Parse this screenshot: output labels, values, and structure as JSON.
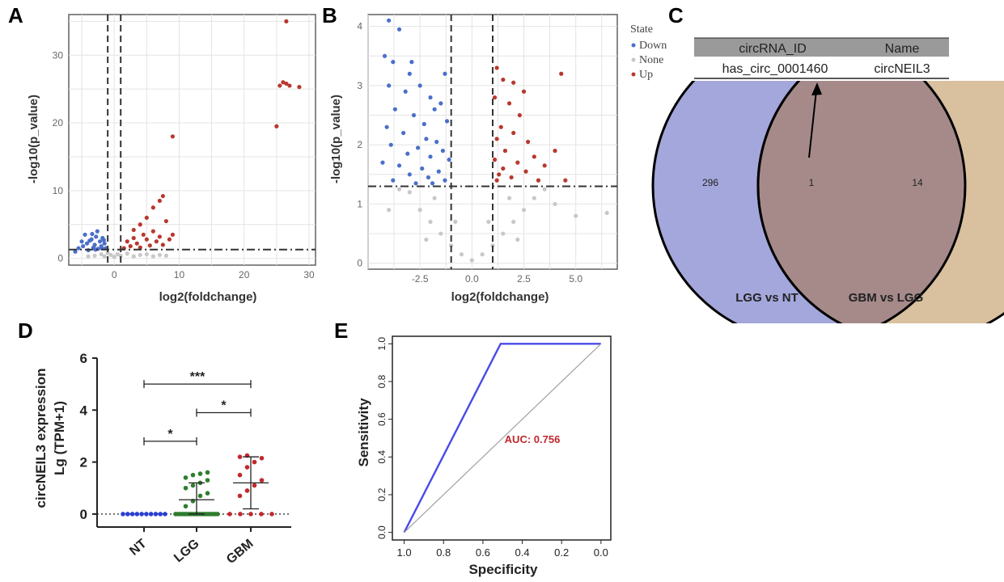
{
  "panels": {
    "A": {
      "letter": "A",
      "chart_data": {
        "type": "scatter",
        "xlabel": "log2(foldchange)",
        "ylabel": "-log10(p_value)",
        "xlim": [
          -7,
          31
        ],
        "ylim": [
          -1,
          36
        ],
        "xticks": [
          0,
          10,
          20,
          30
        ],
        "yticks": [
          0,
          10,
          20,
          30
        ],
        "grid": true,
        "vlines": [
          -1,
          1
        ],
        "hline": 1.3,
        "series": [
          {
            "name": "Down",
            "color": "#4b6fc9",
            "points": [
              [
                -6,
                1
              ],
              [
                -5.5,
                1.5
              ],
              [
                -5,
                2.5
              ],
              [
                -4.8,
                1.8
              ],
              [
                -4.5,
                3.5
              ],
              [
                -4.2,
                2.2
              ],
              [
                -4,
                1.2
              ],
              [
                -3.5,
                2.8
              ],
              [
                -3.2,
                1.6
              ],
              [
                -3,
                2
              ],
              [
                -2.8,
                3.2
              ],
              [
                -2.5,
                1.4
              ],
              [
                -2.2,
                2.5
              ],
              [
                -2,
                1.8
              ],
              [
                -1.8,
                3
              ],
              [
                -1.5,
                2.2
              ],
              [
                -1.3,
                1.5
              ],
              [
                -2.6,
                4
              ],
              [
                -3.8,
                2.6
              ],
              [
                -1.6,
                2.7
              ],
              [
                -2.9,
                1.3
              ],
              [
                -1.9,
                1.5
              ],
              [
                -3.4,
                3.6
              ]
            ]
          },
          {
            "name": "None",
            "color": "#c8c8c8",
            "points": [
              [
                -3,
                0.4
              ],
              [
                -2,
                0.6
              ],
              [
                -1.5,
                0.3
              ],
              [
                -1,
                0.8
              ],
              [
                -0.5,
                0.5
              ],
              [
                0,
                0.2
              ],
              [
                0.5,
                0.6
              ],
              [
                1,
                0.4
              ],
              [
                2,
                0.7
              ],
              [
                3,
                0.3
              ],
              [
                4,
                0.5
              ],
              [
                5,
                0.6
              ],
              [
                6,
                0.3
              ],
              [
                8,
                0.4
              ],
              [
                -4,
                0.3
              ],
              [
                7,
                0.5
              ]
            ]
          },
          {
            "name": "Up",
            "color": "#b8382e",
            "points": [
              [
                1.5,
                1.5
              ],
              [
                2,
                2.5
              ],
              [
                2.5,
                1.8
              ],
              [
                3,
                3
              ],
              [
                3.5,
                2.2
              ],
              [
                4,
                1.6
              ],
              [
                4.5,
                3.5
              ],
              [
                5,
                2.8
              ],
              [
                5.5,
                1.9
              ],
              [
                6,
                4
              ],
              [
                6.5,
                2.5
              ],
              [
                7,
                3.2
              ],
              [
                7.5,
                2
              ],
              [
                8,
                5.5
              ],
              [
                8.5,
                2.8
              ],
              [
                9,
                3.5
              ],
              [
                4,
                5
              ],
              [
                5,
                6
              ],
              [
                6,
                7.5
              ],
              [
                7,
                8.5
              ],
              [
                7.5,
                9.2
              ],
              [
                3,
                4.2
              ],
              [
                9,
                18
              ],
              [
                25,
                19.5
              ],
              [
                25.5,
                25.5
              ],
              [
                26.5,
                25.8
              ],
              [
                27,
                25.5
              ],
              [
                26.5,
                35
              ],
              [
                28.5,
                25.3
              ],
              [
                26,
                26
              ]
            ]
          }
        ]
      }
    },
    "B": {
      "letter": "B",
      "chart_data": {
        "type": "scatter",
        "xlabel": "log2(foldchange)",
        "ylabel": "-log10(p_value)",
        "xlim": [
          -5,
          7
        ],
        "ylim": [
          -0.1,
          4.2
        ],
        "xticks": [
          -2.5,
          0.0,
          2.5,
          5.0
        ],
        "xtick_labels": [
          "-2.5",
          "0.0",
          "2.5",
          "5.0"
        ],
        "yticks": [
          0,
          1,
          2,
          3,
          4
        ],
        "grid": true,
        "vlines": [
          -1,
          1
        ],
        "hline": 1.3,
        "series": [
          {
            "name": "Down",
            "color": "#4b6fc9",
            "points": [
              [
                -4,
                4.1
              ],
              [
                -3.5,
                3.95
              ],
              [
                -4.2,
                3.5
              ],
              [
                -3.8,
                3.4
              ],
              [
                -3,
                3.2
              ],
              [
                -2.5,
                3
              ],
              [
                -4,
                3
              ],
              [
                -3.2,
                2.9
              ],
              [
                -2,
                2.8
              ],
              [
                -1.5,
                2.7
              ],
              [
                -3.7,
                2.6
              ],
              [
                -2.8,
                2.5
              ],
              [
                -1.2,
                2.4
              ],
              [
                -4.1,
                2.3
              ],
              [
                -3.3,
                2.2
              ],
              [
                -2.2,
                2.1
              ],
              [
                -1.7,
                2.05
              ],
              [
                -3.9,
                2
              ],
              [
                -2.6,
                1.95
              ],
              [
                -1.4,
                1.9
              ],
              [
                -3.1,
                1.85
              ],
              [
                -2,
                1.8
              ],
              [
                -1.1,
                1.75
              ],
              [
                -4.3,
                1.7
              ],
              [
                -3.5,
                1.65
              ],
              [
                -2.4,
                1.6
              ],
              [
                -1.6,
                1.55
              ],
              [
                -3,
                1.5
              ],
              [
                -2.1,
                1.45
              ],
              [
                -1.3,
                1.4
              ],
              [
                -3.8,
                1.4
              ],
              [
                -2.7,
                1.35
              ],
              [
                -1.9,
                1.35
              ],
              [
                -2.3,
                2.35
              ],
              [
                -1.8,
                2.6
              ],
              [
                -1.3,
                3.2
              ],
              [
                -2.9,
                3.4
              ]
            ]
          },
          {
            "name": "None",
            "color": "#c8c8c8",
            "points": [
              [
                -3,
                1.2
              ],
              [
                -2.5,
                0.9
              ],
              [
                -2,
                0.7
              ],
              [
                -1.5,
                0.5
              ],
              [
                -1,
                0.3
              ],
              [
                -0.5,
                0.15
              ],
              [
                0,
                0.05
              ],
              [
                0.5,
                0.15
              ],
              [
                1,
                0.3
              ],
              [
                1.5,
                0.5
              ],
              [
                2,
                0.7
              ],
              [
                2.5,
                0.9
              ],
              [
                3,
                1.1
              ],
              [
                3.5,
                1.25
              ],
              [
                -3.5,
                1.25
              ],
              [
                -1.8,
                1.1
              ],
              [
                1.8,
                1.1
              ],
              [
                -0.8,
                0.7
              ],
              [
                0.8,
                0.7
              ],
              [
                4,
                1
              ],
              [
                5,
                0.8
              ],
              [
                6.5,
                0.85
              ],
              [
                -4,
                0.9
              ],
              [
                2.2,
                0.4
              ],
              [
                -2.2,
                0.4
              ]
            ]
          },
          {
            "name": "Up",
            "color": "#b8382e",
            "points": [
              [
                1.2,
                3.3
              ],
              [
                1.5,
                3.1
              ],
              [
                2,
                3.05
              ],
              [
                2.5,
                2.9
              ],
              [
                1.1,
                2.8
              ],
              [
                1.8,
                2.7
              ],
              [
                2.3,
                2.5
              ],
              [
                1.4,
                2.3
              ],
              [
                2,
                2.2
              ],
              [
                1.2,
                2.1
              ],
              [
                2.7,
                2.05
              ],
              [
                1.6,
                1.9
              ],
              [
                3,
                1.8
              ],
              [
                1.1,
                1.75
              ],
              [
                2.2,
                1.7
              ],
              [
                1.5,
                1.6
              ],
              [
                3.5,
                1.65
              ],
              [
                1.3,
                1.5
              ],
              [
                2.6,
                1.55
              ],
              [
                1.9,
                1.45
              ],
              [
                1.2,
                1.4
              ],
              [
                3.2,
                1.4
              ],
              [
                4.3,
                3.2
              ],
              [
                4,
                1.9
              ],
              [
                4.5,
                1.4
              ]
            ]
          }
        ]
      },
      "legend": {
        "title": "State",
        "items": [
          {
            "label": "Down",
            "color": "#4b6fc9"
          },
          {
            "label": "None",
            "color": "#c8c8c8"
          },
          {
            "label": "Up",
            "color": "#b8382e"
          }
        ]
      }
    },
    "C": {
      "letter": "C",
      "table": {
        "headers": [
          "circRNA_ID",
          "Name"
        ],
        "rows": [
          [
            "has_circ_0001460",
            "circNEIL3"
          ]
        ]
      },
      "venn": {
        "left_count": "296",
        "overlap_count": "1",
        "right_count": "14",
        "left_label": "LGG vs NT",
        "right_label": "GBM vs LGG",
        "left_color": "#a4a7db",
        "right_color": "#d9c09f",
        "overlap_color": "#a68a8a"
      }
    },
    "D": {
      "letter": "D",
      "ylabel_line1": "circNEIL3 expression",
      "ylabel_line2": "Lg (TPM+1)",
      "chart_data": {
        "type": "scatter",
        "categories": [
          "NT",
          "LGG",
          "GBM"
        ],
        "ylim": [
          -0.5,
          6
        ],
        "yticks": [
          0,
          2,
          4,
          6
        ],
        "series": [
          {
            "name": "NT",
            "color": "#2b3fcf",
            "mean": 0,
            "sd": 0,
            "values": [
              0,
              0,
              0,
              0,
              0,
              0,
              0,
              0,
              0,
              0
            ]
          },
          {
            "name": "LGG",
            "color": "#2f7d2f",
            "mean": 0.55,
            "sd": 0.65,
            "values": [
              0,
              0,
              0,
              0,
              0,
              0,
              0,
              0,
              0,
              0,
              0,
              0,
              0,
              0,
              0,
              0,
              0,
              0,
              0,
              0,
              0.3,
              0.5,
              0.7,
              0.8,
              1.0,
              1.1,
              1.2,
              1.3,
              1.4,
              1.5,
              1.55,
              1.6
            ]
          },
          {
            "name": "GBM",
            "color": "#c0282d",
            "mean": 1.2,
            "sd": 1.0,
            "values": [
              0,
              0,
              0,
              0,
              0,
              0.7,
              0.9,
              1.1,
              1.3,
              1.5,
              1.8,
              2.0,
              2.15,
              2.2,
              2.25
            ]
          }
        ],
        "significance": [
          {
            "from": "NT",
            "to": "GBM",
            "label": "***",
            "y": 5.0
          },
          {
            "from": "LGG",
            "to": "GBM",
            "label": "*",
            "y": 3.9
          },
          {
            "from": "NT",
            "to": "LGG",
            "label": "*",
            "y": 2.8
          }
        ]
      }
    },
    "E": {
      "letter": "E",
      "chart_data": {
        "type": "line",
        "xlabel": "Specificity",
        "ylabel": "Sensitivity",
        "xlim": [
          1.0,
          0.0
        ],
        "ylim": [
          0.0,
          1.0
        ],
        "xticks": [
          "1.0",
          "0.8",
          "0.6",
          "0.4",
          "0.2",
          "0.0"
        ],
        "yticks": [
          "0.0",
          "0.2",
          "0.4",
          "0.6",
          "0.8",
          "1.0"
        ],
        "annotation": "AUC: 0.756",
        "series": [
          {
            "color": "#4a4ae8",
            "points": [
              [
                1.0,
                0.0
              ],
              [
                0.51,
                1.0
              ],
              [
                0.0,
                1.0
              ]
            ]
          },
          {
            "color": "#a0a0a0",
            "points": [
              [
                1.0,
                0.0
              ],
              [
                0.0,
                1.0
              ]
            ]
          }
        ]
      }
    }
  }
}
